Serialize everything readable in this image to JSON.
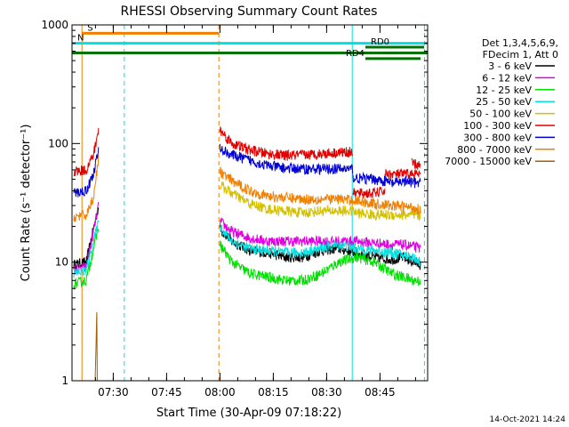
{
  "chart_data": {
    "type": "line",
    "title": "RHESSI Observing Summary Count Rates",
    "xlabel": "Start Time (30-Apr-09 07:18:22)",
    "ylabel": "Count Rate (s⁻¹ detector⁻¹)",
    "yscale": "log",
    "ylim": [
      1,
      1000
    ],
    "xlim_minutes": [
      0,
      100
    ],
    "x_ticks": [
      {
        "label": "07:30",
        "min": 11.6
      },
      {
        "label": "07:45",
        "min": 26.6
      },
      {
        "label": "08:00",
        "min": 41.6
      },
      {
        "label": "08:15",
        "min": 56.6
      },
      {
        "label": "08:30",
        "min": 71.6
      },
      {
        "label": "08:45",
        "min": 86.6
      }
    ],
    "y_ticks": [
      {
        "label": "1",
        "value": 1
      },
      {
        "label": "10",
        "value": 10
      },
      {
        "label": "100",
        "value": 100
      },
      {
        "label": "1000",
        "value": 1000
      }
    ],
    "legend": {
      "placement": "right",
      "header": [
        "Det 1,3,4,5,6,9,",
        "FDecim 1, Att 0"
      ],
      "entries": [
        {
          "label": "3 - 6 keV",
          "color": "#000000"
        },
        {
          "label": "6 - 12 keV",
          "color": "#e000e0"
        },
        {
          "label": "12 - 25 keV",
          "color": "#00e000"
        },
        {
          "label": "25 - 50 keV",
          "color": "#00e0e0"
        },
        {
          "label": "50 - 100 keV",
          "color": "#d4c000"
        },
        {
          "label": "100 - 300 keV",
          "color": "#e00000"
        },
        {
          "label": "300 - 800 keV",
          "color": "#0000d0"
        },
        {
          "label": "800 - 7000 keV",
          "color": "#f08000"
        },
        {
          "label": "7000 - 15000 keV",
          "color": "#a06000"
        }
      ]
    },
    "bars": [
      {
        "label": "S",
        "color": "#f08000",
        "value": 850,
        "start": 2.8,
        "end": 41.3
      },
      {
        "label": "N",
        "color": "#00e0e0",
        "value": 700,
        "start": 0,
        "end": 100
      },
      {
        "label": "",
        "color": "#007000",
        "value": 580,
        "start": 0,
        "end": 100
      },
      {
        "label": "RD0",
        "color": "#007000",
        "value": 650,
        "start": 82.5,
        "end": 99
      },
      {
        "label": "RD4",
        "color": "#007000",
        "value": 520,
        "start": 82.5,
        "end": 98
      }
    ],
    "vlines": [
      {
        "min": 0.0,
        "color": "#00e0e0",
        "style": "solid"
      },
      {
        "min": 2.8,
        "color": "#f08000",
        "style": "solid"
      },
      {
        "min": 14.7,
        "color": "#00e0e0",
        "style": "dashed"
      },
      {
        "min": 41.3,
        "color": "#f08000",
        "style": "dashed"
      },
      {
        "min": 78.8,
        "color": "#00e0e0",
        "style": "solid"
      },
      {
        "min": 99.1,
        "color": "#00e0e0",
        "style": "dashed"
      }
    ],
    "series": [
      {
        "name": "3 - 6 keV",
        "color": "#000000",
        "segments": [
          {
            "x": [
              0.5,
              4,
              7.5
            ],
            "y": [
              9.5,
              10,
              30
            ]
          },
          {
            "x": [
              41.6,
              45,
              50,
              55,
              60,
              65,
              70,
              75,
              80,
              85,
              90,
              93,
              96,
              98
            ],
            "y": [
              19,
              15,
              12.5,
              12,
              11,
              11,
              12.5,
              13,
              12,
              11,
              10.5,
              11,
              10,
              9.5
            ]
          }
        ]
      },
      {
        "name": "6 - 12 keV",
        "color": "#e000e0",
        "segments": [
          {
            "x": [
              0.5,
              4,
              7.5
            ],
            "y": [
              8.5,
              9,
              30
            ]
          },
          {
            "x": [
              41.6,
              45,
              50,
              55,
              60,
              65,
              70,
              75,
              80,
              85,
              90,
              93,
              96,
              98
            ],
            "y": [
              22,
              18,
              16,
              15,
              15,
              15,
              15,
              15,
              15,
              14.5,
              14,
              14,
              13.5,
              13
            ]
          }
        ]
      },
      {
        "name": "12 - 25 keV",
        "color": "#00e000",
        "segments": [
          {
            "x": [
              0.5,
              4,
              7.5
            ],
            "y": [
              6.5,
              7,
              20
            ]
          },
          {
            "x": [
              41.6,
              45,
              50,
              55,
              60,
              65,
              70,
              75,
              80,
              85,
              90,
              93,
              96,
              98
            ],
            "y": [
              14,
              10,
              8,
              7.5,
              7,
              7,
              8,
              10,
              11,
              10,
              8,
              7.5,
              7,
              7
            ]
          }
        ]
      },
      {
        "name": "25 - 50 keV",
        "color": "#00e0e0",
        "segments": [
          {
            "x": [
              0.5,
              4,
              7.5
            ],
            "y": [
              8,
              8.5,
              22
            ]
          },
          {
            "x": [
              41.6,
              45,
              50,
              55,
              60,
              65,
              70,
              75,
              80,
              85,
              90,
              93,
              96,
              98
            ],
            "y": [
              20,
              15,
              13,
              12.5,
              12,
              12,
              13,
              14,
              13,
              12.5,
              12,
              11.5,
              11,
              10
            ]
          }
        ]
      },
      {
        "name": "50 - 100 keV",
        "color": "#d4c000",
        "segments": [
          {
            "x": [
              41.6,
              45,
              50,
              55,
              60,
              65,
              70,
              75,
              79,
              80,
              85,
              90,
              95,
              98
            ],
            "y": [
              45,
              38,
              31,
              28,
              27,
              26,
              27,
              27,
              27,
              26,
              25,
              25,
              25,
              24
            ]
          }
        ]
      },
      {
        "name": "100 - 300 keV",
        "color": "#e00000",
        "segments": [
          {
            "x": [
              0.5,
              4,
              6,
              7.5
            ],
            "y": [
              58,
              60,
              80,
              130
            ]
          },
          {
            "x": [
              41.6,
              45,
              50,
              55,
              60,
              65,
              70,
              75,
              79
            ],
            "y": [
              130,
              100,
              88,
              82,
              79,
              80,
              82,
              84,
              85
            ]
          },
          {
            "x": [
              79,
              85,
              88
            ],
            "y": [
              38,
              38,
              40
            ]
          },
          {
            "x": [
              88,
              95,
              98
            ],
            "y": [
              55,
              55,
              55
            ]
          },
          {
            "x": [
              95.5,
              98
            ],
            "y": [
              68,
              65
            ]
          }
        ]
      },
      {
        "name": "300 - 800 keV",
        "color": "#0000d0",
        "segments": [
          {
            "x": [
              0.5,
              4,
              6,
              7.5
            ],
            "y": [
              38,
              40,
              55,
              90
            ]
          },
          {
            "x": [
              41.6,
              45,
              50,
              55,
              60,
              65,
              70,
              75,
              79
            ],
            "y": [
              90,
              80,
              72,
              65,
              62,
              61,
              61,
              61,
              61
            ]
          },
          {
            "x": [
              79,
              85,
              88,
              90,
              93,
              95,
              98
            ],
            "y": [
              51,
              50,
              48,
              46,
              48,
              47,
              46
            ]
          }
        ]
      },
      {
        "name": "800 - 7000 keV",
        "color": "#f08000",
        "segments": [
          {
            "x": [
              0.5,
              4,
              6,
              7.5
            ],
            "y": [
              24,
              25,
              35,
              75
            ]
          },
          {
            "x": [
              41.6,
              45,
              50,
              55,
              60,
              65,
              70,
              75,
              80,
              85,
              90,
              95,
              98
            ],
            "y": [
              58,
              48,
              40,
              36,
              35,
              34,
              34,
              34,
              33,
              31,
              30,
              29,
              28
            ]
          }
        ]
      },
      {
        "name": "7000 - 15000 keV",
        "color": "#a06000",
        "segments": [
          {
            "x": [
              6.5,
              7.0,
              7.1,
              7.6
            ],
            "y": [
              1,
              4,
              1,
              1
            ]
          }
        ]
      }
    ]
  },
  "footer_timestamp": "14-Oct-2021 14:24"
}
